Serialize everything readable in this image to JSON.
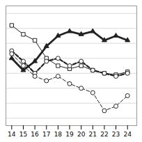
{
  "chart_data": {
    "type": "line",
    "x": [
      14,
      15,
      16,
      17,
      18,
      19,
      20,
      21,
      22,
      23,
      24
    ],
    "series": [
      {
        "color": "#222222",
        "marker": "square",
        "line_style": "solid",
        "values": [
          8.2,
          7.6,
          7.2,
          6.0,
          5.5,
          5.3,
          5.5,
          5.2,
          5.0,
          4.9,
          5.1
        ]
      },
      {
        "color": "#222222",
        "marker": "triangle",
        "line_style": "solid",
        "values": [
          6.0,
          5.2,
          5.8,
          6.8,
          7.5,
          7.8,
          7.6,
          7.8,
          7.2,
          7.5,
          7.2
        ]
      },
      {
        "color": "#222222",
        "marker": "circle",
        "line_style": "dashed",
        "values": [
          6.5,
          5.8,
          5.0,
          5.8,
          6.0,
          5.5,
          5.8,
          5.2,
          5.0,
          4.8,
          5.0
        ]
      },
      {
        "color": "#222222",
        "marker": "circle",
        "line_style": "dashed",
        "values": [
          6.3,
          5.5,
          4.8,
          4.5,
          4.8,
          4.3,
          4.0,
          3.7,
          2.5,
          2.8,
          3.5
        ]
      }
    ],
    "xlim": [
      13.5,
      24.8
    ],
    "ylim": [
      1.5,
      9.5
    ],
    "xticks": [
      14,
      15,
      16,
      17,
      18,
      19,
      20,
      21,
      22,
      23,
      24
    ],
    "yticks": [
      2,
      3,
      4,
      5,
      6,
      7,
      8,
      9
    ],
    "grid": true,
    "tick_labels": "x"
  }
}
